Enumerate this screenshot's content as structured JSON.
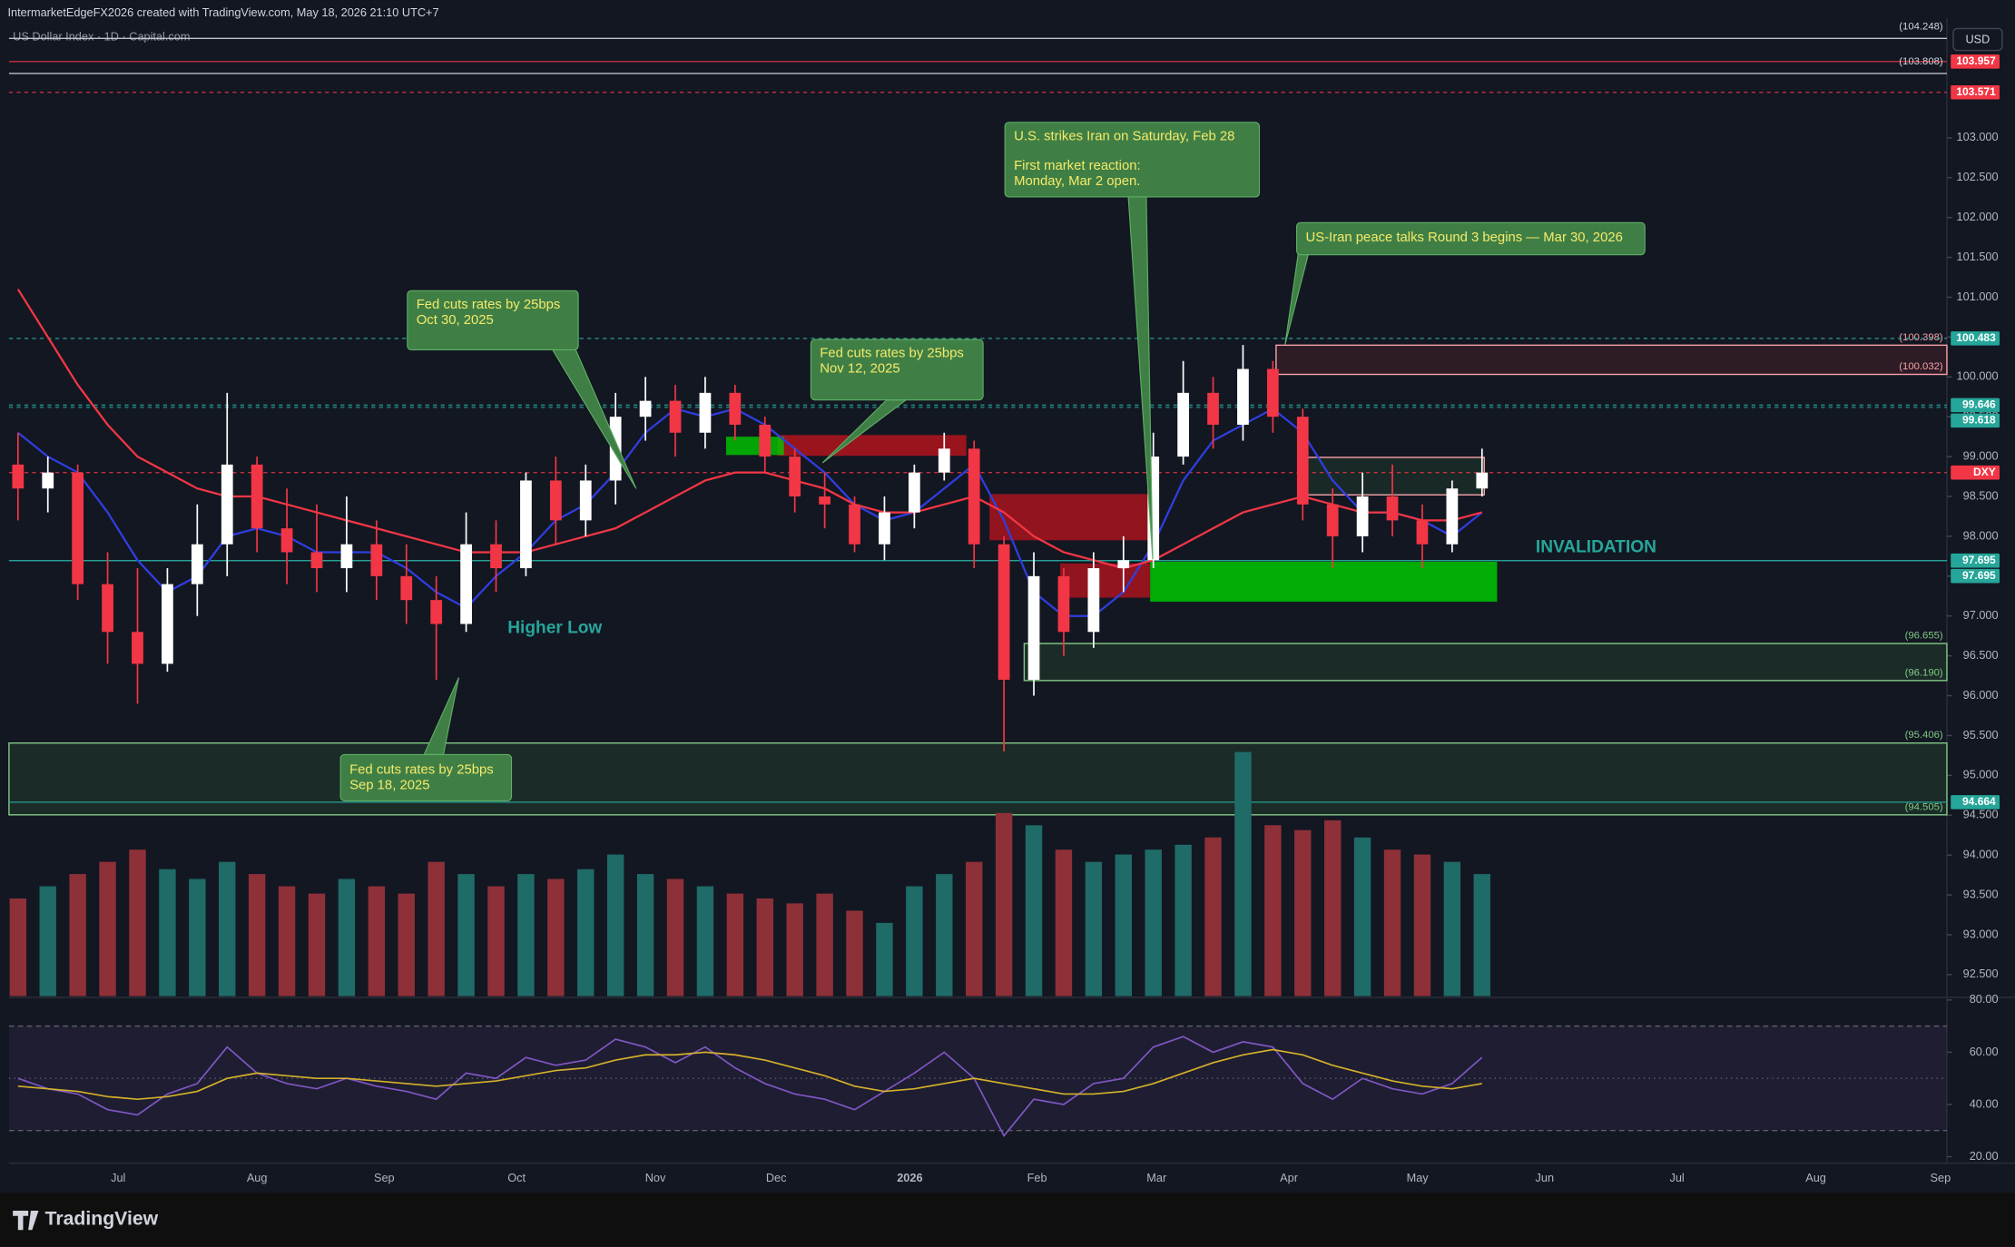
{
  "header": "IntermarketEdgeFX2026 created with TradingView.com, May 18, 2026 21:10 UTC+7",
  "logo": "TradingView",
  "currency": "USD",
  "chart_data": {
    "type": "candlestick",
    "title": "US Dollar Index · 1D · Capital.com",
    "up_color": "#ffffff",
    "down_color": "#f23645",
    "open": [
      98.9,
      98.6,
      98.8,
      97.4,
      96.8,
      96.4,
      97.4,
      97.9,
      98.9,
      98.1,
      97.8,
      97.6,
      97.9,
      97.5,
      97.2,
      96.9,
      97.9,
      97.6,
      98.7,
      98.2,
      98.7,
      99.5,
      99.7,
      99.3,
      99.8,
      99.4,
      99.0,
      98.5,
      98.4,
      97.9,
      98.3,
      98.8,
      99.1,
      97.9,
      96.2,
      97.5,
      96.8,
      97.6,
      97.7,
      99.0,
      99.8,
      99.4,
      100.1,
      99.5,
      98.4,
      98.0,
      98.5,
      98.2,
      97.9,
      98.6
    ],
    "high": [
      99.3,
      99.0,
      98.9,
      97.8,
      97.6,
      97.6,
      98.4,
      99.8,
      99.0,
      98.6,
      98.4,
      98.5,
      98.2,
      97.9,
      97.5,
      98.3,
      98.2,
      98.8,
      99.0,
      98.9,
      99.8,
      100.0,
      99.9,
      100.0,
      99.9,
      99.5,
      99.1,
      98.8,
      98.5,
      98.5,
      98.9,
      99.3,
      99.2,
      98.0,
      97.8,
      97.6,
      97.8,
      98.0,
      99.3,
      100.2,
      100.0,
      100.4,
      100.2,
      99.6,
      98.6,
      98.8,
      98.9,
      98.4,
      98.7,
      99.1
    ],
    "low": [
      98.2,
      98.3,
      97.2,
      96.4,
      95.9,
      96.3,
      97.0,
      97.5,
      97.8,
      97.4,
      97.3,
      97.3,
      97.2,
      96.9,
      96.2,
      96.8,
      97.3,
      97.5,
      97.9,
      98.0,
      98.4,
      99.2,
      99.0,
      99.1,
      99.2,
      98.8,
      98.3,
      98.1,
      97.8,
      97.7,
      98.1,
      98.7,
      97.6,
      95.3,
      96.0,
      96.5,
      96.6,
      97.3,
      97.6,
      98.9,
      99.1,
      99.2,
      99.3,
      98.2,
      97.6,
      97.8,
      98.0,
      97.6,
      97.8,
      98.5
    ],
    "close": [
      98.6,
      98.8,
      97.4,
      96.8,
      96.4,
      97.4,
      97.9,
      98.9,
      98.1,
      97.8,
      97.6,
      97.9,
      97.5,
      97.2,
      96.9,
      97.9,
      97.6,
      98.7,
      98.2,
      98.7,
      99.5,
      99.7,
      99.3,
      99.8,
      99.4,
      99.0,
      98.5,
      98.4,
      97.9,
      98.3,
      98.8,
      99.1,
      97.9,
      96.2,
      97.5,
      96.8,
      97.6,
      97.7,
      99.0,
      99.8,
      99.4,
      100.1,
      99.5,
      98.4,
      98.0,
      98.5,
      98.2,
      97.9,
      98.6,
      98.8
    ],
    "volume": [
      40,
      45,
      50,
      55,
      60,
      52,
      48,
      55,
      50,
      45,
      42,
      48,
      45,
      42,
      55,
      50,
      45,
      50,
      48,
      52,
      58,
      50,
      48,
      45,
      42,
      40,
      38,
      42,
      35,
      30,
      45,
      50,
      55,
      75,
      70,
      60,
      55,
      58,
      60,
      62,
      65,
      100,
      70,
      68,
      72,
      65,
      60,
      58,
      55,
      50
    ],
    "volume_up_color": "#1f6b68",
    "volume_down_color": "#8e3038",
    "moving_averages": [
      {
        "color": "#2f3ee0",
        "values": [
          99.3,
          99.0,
          98.8,
          98.3,
          97.7,
          97.3,
          97.5,
          98.0,
          98.1,
          98.0,
          97.8,
          97.8,
          97.8,
          97.6,
          97.3,
          97.1,
          97.5,
          97.8,
          98.2,
          98.4,
          98.8,
          99.3,
          99.6,
          99.5,
          99.6,
          99.4,
          99.1,
          98.8,
          98.4,
          98.2,
          98.3,
          98.6,
          98.9,
          98.2,
          97.3,
          97.0,
          97.0,
          97.3,
          97.9,
          98.7,
          99.2,
          99.4,
          99.6,
          99.3,
          98.7,
          98.3,
          98.3,
          98.2,
          98.0,
          98.3
        ]
      },
      {
        "color": "#f23645",
        "values": [
          101.1,
          100.5,
          99.9,
          99.4,
          99.0,
          98.8,
          98.6,
          98.5,
          98.5,
          98.4,
          98.3,
          98.2,
          98.1,
          98.0,
          97.9,
          97.8,
          97.8,
          97.8,
          97.9,
          98.0,
          98.1,
          98.3,
          98.5,
          98.7,
          98.8,
          98.8,
          98.7,
          98.6,
          98.4,
          98.3,
          98.3,
          98.4,
          98.5,
          98.3,
          98.0,
          97.8,
          97.7,
          97.6,
          97.7,
          97.9,
          98.1,
          98.3,
          98.4,
          98.5,
          98.4,
          98.3,
          98.3,
          98.2,
          98.2,
          98.3
        ]
      }
    ],
    "ylim": [
      92.23,
      104.5
    ],
    "yticks": [
      {
        "value": 92.5,
        "label": "92.500"
      },
      {
        "value": 93,
        "label": "93.000"
      },
      {
        "value": 93.5,
        "label": "93.500"
      },
      {
        "value": 94,
        "label": "94.000"
      },
      {
        "value": 94.5,
        "label": "94.500"
      },
      {
        "value": 95,
        "label": "95.000"
      },
      {
        "value": 95.5,
        "label": "95.500"
      },
      {
        "value": 96,
        "label": "96.000"
      },
      {
        "value": 96.5,
        "label": "96.500"
      },
      {
        "value": 97,
        "label": "97.000"
      },
      {
        "value": 97.5,
        "label": "97.500"
      },
      {
        "value": 98,
        "label": "98.000"
      },
      {
        "value": 98.5,
        "label": "98.500"
      },
      {
        "value": 99,
        "label": "99.000"
      },
      {
        "value": 99.5,
        "label": "99.500"
      },
      {
        "value": 100,
        "label": "100.000"
      },
      {
        "value": 100.5,
        "label": "100.500"
      },
      {
        "value": 101,
        "label": "101.000"
      },
      {
        "value": 101.5,
        "label": "101.500"
      },
      {
        "value": 102,
        "label": "102.000"
      },
      {
        "value": 102.5,
        "label": "102.500"
      },
      {
        "value": 103,
        "label": "103.000"
      }
    ],
    "months": [
      "Jul",
      "Aug",
      "Sep",
      "Oct",
      "Nov",
      "Dec",
      "2026",
      "Feb",
      "Mar",
      "Apr",
      "May",
      "Jun",
      "Jul",
      "Aug",
      "Sep"
    ],
    "price_lines": [
      {
        "value": 104.248,
        "label": "(104.248)",
        "color": "#d1d4dc",
        "style": "note",
        "dash": false
      },
      {
        "value": 103.957,
        "label": "103.957",
        "color": "#f23645",
        "style": "tag",
        "dash": false
      },
      {
        "value": 103.808,
        "label": "(103.808)",
        "color": "#d1d4dc",
        "style": "note",
        "dash": false
      },
      {
        "value": 103.571,
        "label": "103.571",
        "color": "#f23645",
        "style": "tag",
        "dash": true
      },
      {
        "value": 100.483,
        "label": "100.483",
        "color": "#26a69a",
        "style": "tag",
        "dash": true
      },
      {
        "value": 99.646,
        "label": "99.646",
        "color": "#26a69a",
        "style": "tag",
        "dash": true
      },
      {
        "value": 99.618,
        "label": "99.618",
        "color": "#26a69a",
        "style": "tag",
        "dash": true
      },
      {
        "value": 98.8,
        "label": "DXY",
        "color": "#f23645",
        "style": "tag",
        "dash": true
      },
      {
        "value": 97.695,
        "label": "97.695",
        "color": "#26a69a",
        "style": "tag",
        "dash": false
      },
      {
        "value": 97.695,
        "label": "97.695",
        "color": "#26a69a",
        "style": "tag",
        "dash": false
      },
      {
        "value": 94.664,
        "label": "94.664",
        "color": "#26a69a",
        "style": "tag",
        "dash": false
      }
    ],
    "zones": [
      {
        "top": 100.398,
        "bottom": 100.032,
        "top_label": "(100.398)",
        "bottom_label": "(100.032)",
        "fill": "rgba(242,54,69,0.12)",
        "stroke": "#f7a1a8"
      },
      {
        "top": 96.655,
        "bottom": 96.19,
        "top_label": "(96.655)",
        "bottom_label": "(96.190)",
        "fill": "rgba(76,175,80,0.14)",
        "stroke": "#81c784"
      },
      {
        "top": 95.406,
        "bottom": 94.505,
        "top_label": "(95.406)",
        "bottom_label": "(94.505)",
        "fill": "rgba(76,175,80,0.14)",
        "stroke": "#81c784"
      },
      {
        "top": 99.27,
        "bottom": 99.01,
        "fill": "rgba(200,20,30,0.75)",
        "stroke": "none"
      },
      {
        "top": 99.25,
        "bottom": 99.02,
        "fill": "rgba(0,200,0,0.8)",
        "stroke": "none"
      },
      {
        "top": 98.53,
        "bottom": 97.95,
        "fill": "rgba(200,20,30,0.7)",
        "stroke": "none"
      },
      {
        "top": 97.66,
        "bottom": 97.23,
        "fill": "rgba(200,20,30,0.7)",
        "stroke": "none"
      },
      {
        "top": 97.68,
        "bottom": 97.18,
        "fill": "rgba(0,200,0,0.85)",
        "stroke": "none"
      },
      {
        "top": 98.99,
        "bottom": 98.52,
        "fill": "rgba(76,175,80,0.12)",
        "stroke": "#f7a1a8"
      }
    ],
    "annotations": [
      {
        "lines": [
          "Fed cuts rates by 25bps",
          "Sep 18, 2025"
        ]
      },
      {
        "lines": [
          "Fed cuts rates by 25bps",
          "Oct 30, 2025"
        ]
      },
      {
        "lines": [
          "Fed cuts rates by 25bps",
          "Nov 12, 2025"
        ]
      },
      {
        "lines": [
          "U.S. strikes Iran on Saturday, Feb 28",
          "First market reaction:",
          "Monday, Mar 2 open."
        ]
      },
      {
        "lines": [
          "US-Iran peace talks Round 3 begins — Mar 30, 2026"
        ]
      }
    ],
    "annotation_fill": "#3f7f45",
    "annotation_text_color": "#f5ea6a",
    "labels": [
      {
        "text": "Higher Low",
        "color": "#26a69a"
      },
      {
        "text": "INVALIDATION",
        "color": "#26a69a"
      }
    ],
    "rsi": {
      "color": "#7e57c2",
      "ma_color": "#d4b02a",
      "values": [
        50,
        46,
        44,
        38,
        36,
        44,
        48,
        62,
        52,
        48,
        46,
        50,
        47,
        45,
        42,
        52,
        50,
        58,
        55,
        57,
        65,
        62,
        56,
        62,
        54,
        48,
        44,
        42,
        38,
        45,
        52,
        60,
        50,
        28,
        42,
        40,
        48,
        50,
        62,
        66,
        60,
        64,
        62,
        48,
        42,
        50,
        46,
        44,
        48,
        58
      ],
      "ma": [
        47,
        46,
        45,
        43,
        42,
        43,
        45,
        50,
        52,
        51,
        50,
        50,
        49,
        48,
        47,
        48,
        49,
        51,
        53,
        54,
        57,
        59,
        59,
        60,
        59,
        57,
        54,
        51,
        47,
        45,
        46,
        48,
        50,
        48,
        46,
        44,
        44,
        45,
        48,
        52,
        56,
        59,
        61,
        59,
        55,
        52,
        49,
        47,
        46,
        48
      ],
      "ylim": [
        17.5,
        81
      ],
      "yticks": [
        {
          "value": 20,
          "label": "20.00"
        },
        {
          "value": 40,
          "label": "40.00"
        },
        {
          "value": 60,
          "label": "60.00"
        },
        {
          "value": 80,
          "label": "80.00"
        }
      ],
      "levels": [
        30,
        50,
        70
      ]
    }
  }
}
